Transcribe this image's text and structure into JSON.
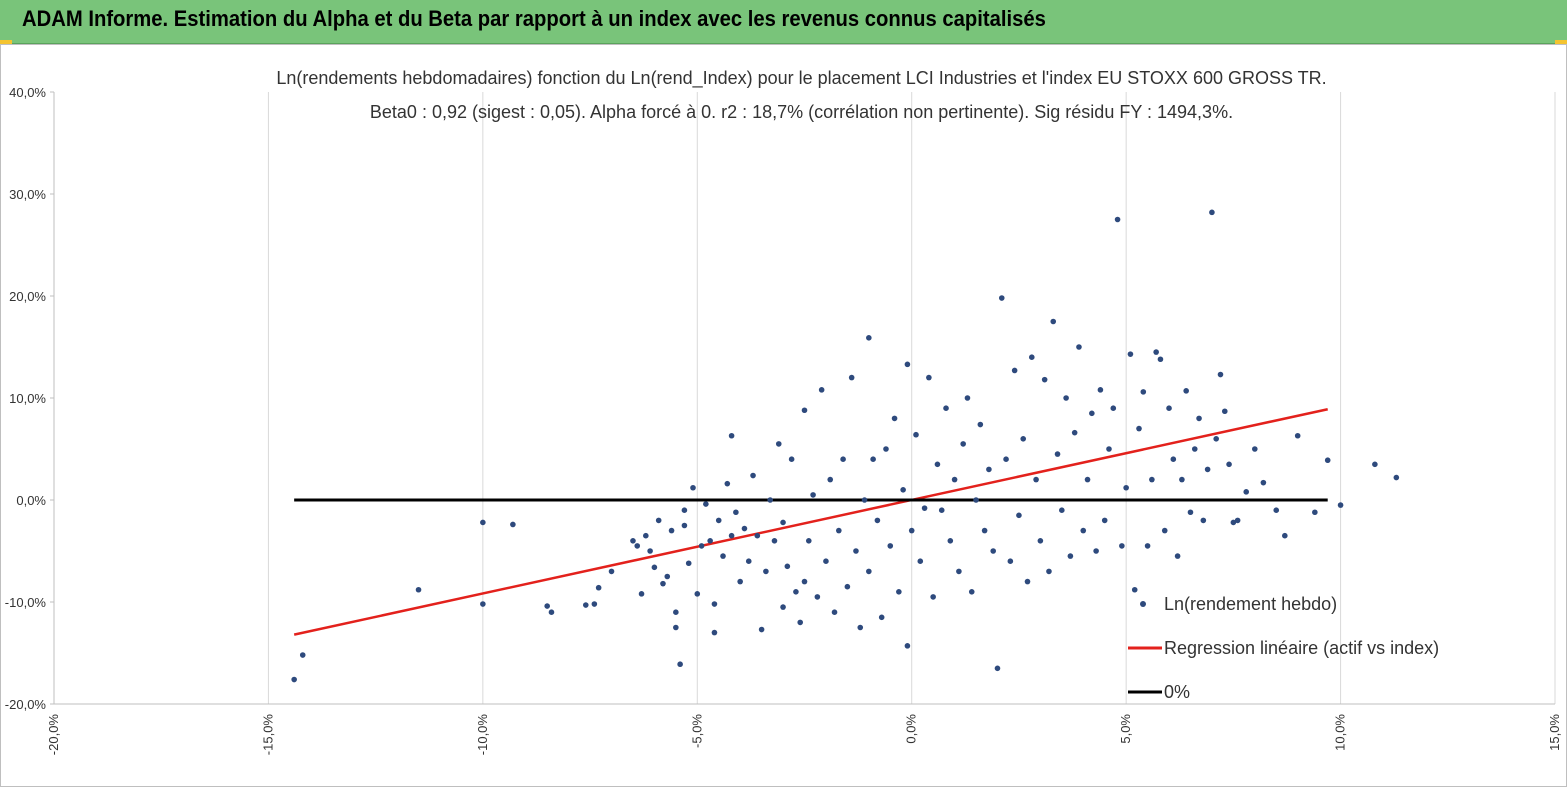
{
  "header": {
    "title": "ADAM Informe. Estimation du Alpha et du Beta par rapport à un index avec les revenus connus capitalisés",
    "color": "#79c47a"
  },
  "chart_data": {
    "type": "scatter",
    "title_line1": "Ln(rendements hebdomadaires) fonction du Ln(rend_Index) pour le placement LCI Industries et l'index EU STOXX 600 GROSS TR.",
    "title_line2": "Beta0 : 0,92 (sigest : 0,05). Alpha forcé à 0. r2 : 18,7% (corrélation non pertinente). Sig résidu FY : 1494,3%.",
    "xlim": [
      -0.2,
      0.15
    ],
    "ylim": [
      -0.2,
      0.4
    ],
    "x_ticks": [
      -0.2,
      -0.15,
      -0.1,
      -0.05,
      0.0,
      0.05,
      0.1,
      0.15
    ],
    "x_tick_labels": [
      "-20,0%",
      "-15,0%",
      "-10,0%",
      "-5,0%",
      "0,0%",
      "5,0%",
      "10,0%",
      "15,0%"
    ],
    "y_ticks": [
      0.4,
      0.3,
      0.2,
      0.1,
      0.0,
      -0.1,
      -0.2
    ],
    "y_tick_labels": [
      "40,0%",
      "30,0%",
      "20,0%",
      "10,0%",
      "0,0%",
      "-10,0%",
      "-20,0%"
    ],
    "grid": "vertical",
    "legend_position": "bottom-right",
    "series": [
      {
        "name": "Ln(rendement hebdo)",
        "kind": "scatter",
        "color": "#2e4a7d",
        "points": [
          [
            -0.144,
            -0.176
          ],
          [
            -0.142,
            -0.152
          ],
          [
            -0.115,
            -0.088
          ],
          [
            -0.1,
            -0.022
          ],
          [
            -0.1,
            -0.102
          ],
          [
            -0.093,
            -0.024
          ],
          [
            -0.085,
            -0.104
          ],
          [
            -0.084,
            -0.11
          ],
          [
            -0.076,
            -0.103
          ],
          [
            -0.074,
            -0.102
          ],
          [
            -0.073,
            -0.086
          ],
          [
            -0.07,
            -0.07
          ],
          [
            -0.065,
            -0.04
          ],
          [
            -0.064,
            -0.045
          ],
          [
            -0.063,
            -0.092
          ],
          [
            -0.062,
            -0.035
          ],
          [
            -0.061,
            -0.05
          ],
          [
            -0.06,
            -0.066
          ],
          [
            -0.059,
            -0.02
          ],
          [
            -0.058,
            -0.082
          ],
          [
            -0.057,
            -0.075
          ],
          [
            -0.056,
            -0.03
          ],
          [
            -0.055,
            -0.11
          ],
          [
            -0.055,
            -0.125
          ],
          [
            -0.054,
            -0.161
          ],
          [
            -0.053,
            -0.01
          ],
          [
            -0.053,
            -0.025
          ],
          [
            -0.052,
            -0.062
          ],
          [
            -0.051,
            0.012
          ],
          [
            -0.05,
            -0.092
          ],
          [
            -0.049,
            -0.045
          ],
          [
            -0.048,
            -0.004
          ],
          [
            -0.047,
            -0.04
          ],
          [
            -0.046,
            -0.102
          ],
          [
            -0.046,
            -0.13
          ],
          [
            -0.045,
            -0.02
          ],
          [
            -0.044,
            -0.055
          ],
          [
            -0.043,
            0.016
          ],
          [
            -0.042,
            0.063
          ],
          [
            -0.042,
            -0.035
          ],
          [
            -0.041,
            -0.012
          ],
          [
            -0.04,
            -0.08
          ],
          [
            -0.039,
            -0.028
          ],
          [
            -0.038,
            -0.06
          ],
          [
            -0.037,
            0.024
          ],
          [
            -0.036,
            -0.035
          ],
          [
            -0.035,
            -0.127
          ],
          [
            -0.034,
            -0.07
          ],
          [
            -0.033,
            0.0
          ],
          [
            -0.032,
            -0.04
          ],
          [
            -0.031,
            0.055
          ],
          [
            -0.03,
            -0.022
          ],
          [
            -0.03,
            -0.105
          ],
          [
            -0.029,
            -0.065
          ],
          [
            -0.028,
            0.04
          ],
          [
            -0.027,
            -0.09
          ],
          [
            -0.026,
            -0.12
          ],
          [
            -0.025,
            0.088
          ],
          [
            -0.025,
            -0.08
          ],
          [
            -0.024,
            -0.04
          ],
          [
            -0.023,
            0.005
          ],
          [
            -0.022,
            -0.095
          ],
          [
            -0.021,
            0.108
          ],
          [
            -0.02,
            -0.06
          ],
          [
            -0.019,
            0.02
          ],
          [
            -0.018,
            -0.11
          ],
          [
            -0.017,
            -0.03
          ],
          [
            -0.016,
            0.04
          ],
          [
            -0.015,
            -0.085
          ],
          [
            -0.014,
            0.12
          ],
          [
            -0.013,
            -0.05
          ],
          [
            -0.012,
            -0.125
          ],
          [
            -0.011,
            0.0
          ],
          [
            -0.01,
            0.159
          ],
          [
            -0.01,
            -0.07
          ],
          [
            -0.009,
            0.04
          ],
          [
            -0.008,
            -0.02
          ],
          [
            -0.007,
            -0.115
          ],
          [
            -0.006,
            0.05
          ],
          [
            -0.005,
            -0.045
          ],
          [
            -0.004,
            0.08
          ],
          [
            -0.003,
            -0.09
          ],
          [
            -0.002,
            0.01
          ],
          [
            -0.001,
            0.133
          ],
          [
            -0.001,
            -0.143
          ],
          [
            0.0,
            -0.03
          ],
          [
            0.001,
            0.064
          ],
          [
            0.002,
            -0.06
          ],
          [
            0.003,
            -0.008
          ],
          [
            0.004,
            0.12
          ],
          [
            0.005,
            -0.095
          ],
          [
            0.006,
            0.035
          ],
          [
            0.007,
            -0.01
          ],
          [
            0.008,
            0.09
          ],
          [
            0.009,
            -0.04
          ],
          [
            0.01,
            0.02
          ],
          [
            0.011,
            -0.07
          ],
          [
            0.012,
            0.055
          ],
          [
            0.013,
            0.1
          ],
          [
            0.014,
            -0.09
          ],
          [
            0.015,
            0.0
          ],
          [
            0.016,
            0.074
          ],
          [
            0.017,
            -0.03
          ],
          [
            0.018,
            0.03
          ],
          [
            0.019,
            -0.05
          ],
          [
            0.02,
            -0.165
          ],
          [
            0.021,
            0.198
          ],
          [
            0.022,
            0.04
          ],
          [
            0.023,
            -0.06
          ],
          [
            0.024,
            0.127
          ],
          [
            0.025,
            -0.015
          ],
          [
            0.026,
            0.06
          ],
          [
            0.027,
            -0.08
          ],
          [
            0.028,
            0.14
          ],
          [
            0.029,
            0.02
          ],
          [
            0.03,
            -0.04
          ],
          [
            0.031,
            0.118
          ],
          [
            0.032,
            -0.07
          ],
          [
            0.033,
            0.175
          ],
          [
            0.034,
            0.045
          ],
          [
            0.035,
            -0.01
          ],
          [
            0.036,
            0.1
          ],
          [
            0.037,
            -0.055
          ],
          [
            0.038,
            0.066
          ],
          [
            0.039,
            0.15
          ],
          [
            0.04,
            -0.03
          ],
          [
            0.041,
            0.02
          ],
          [
            0.042,
            0.085
          ],
          [
            0.043,
            -0.05
          ],
          [
            0.044,
            0.108
          ],
          [
            0.045,
            -0.02
          ],
          [
            0.046,
            0.05
          ],
          [
            0.047,
            0.09
          ],
          [
            0.048,
            0.275
          ],
          [
            0.049,
            -0.045
          ],
          [
            0.05,
            0.012
          ],
          [
            0.051,
            0.143
          ],
          [
            0.052,
            -0.088
          ],
          [
            0.053,
            0.07
          ],
          [
            0.054,
            0.106
          ],
          [
            0.055,
            -0.045
          ],
          [
            0.056,
            0.02
          ],
          [
            0.057,
            0.145
          ],
          [
            0.058,
            0.138
          ],
          [
            0.059,
            -0.03
          ],
          [
            0.06,
            0.09
          ],
          [
            0.061,
            0.04
          ],
          [
            0.062,
            -0.055
          ],
          [
            0.063,
            0.02
          ],
          [
            0.064,
            0.107
          ],
          [
            0.065,
            -0.012
          ],
          [
            0.066,
            0.05
          ],
          [
            0.067,
            0.08
          ],
          [
            0.068,
            -0.02
          ],
          [
            0.069,
            0.03
          ],
          [
            0.07,
            0.282
          ],
          [
            0.071,
            0.06
          ],
          [
            0.072,
            0.123
          ],
          [
            0.073,
            0.087
          ],
          [
            0.074,
            0.035
          ],
          [
            0.075,
            -0.022
          ],
          [
            0.076,
            -0.02
          ],
          [
            0.078,
            0.008
          ],
          [
            0.08,
            0.05
          ],
          [
            0.082,
            0.017
          ],
          [
            0.085,
            -0.01
          ],
          [
            0.087,
            -0.035
          ],
          [
            0.09,
            0.063
          ],
          [
            0.1,
            -0.005
          ],
          [
            0.108,
            0.035
          ],
          [
            0.113,
            0.022
          ],
          [
            0.097,
            0.039
          ],
          [
            0.094,
            -0.012
          ]
        ]
      },
      {
        "name": "Regression linéaire (actif vs index)",
        "kind": "line",
        "color": "#e3211c",
        "points": [
          [
            -0.144,
            -0.132
          ],
          [
            0.097,
            0.089
          ]
        ]
      },
      {
        "name": "0%",
        "kind": "line",
        "color": "#000000",
        "points": [
          [
            -0.144,
            0.0
          ],
          [
            0.097,
            0.0
          ]
        ]
      }
    ]
  }
}
